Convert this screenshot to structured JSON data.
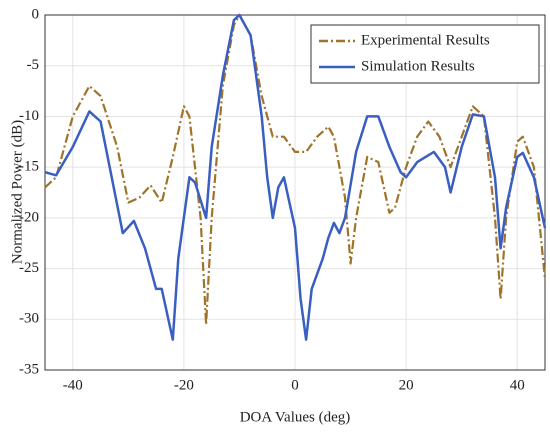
{
  "chart_data": {
    "type": "line",
    "xlabel": "DOA Values (deg)",
    "ylabel": "Normalized Power (dB)",
    "xlim": [
      -45,
      45
    ],
    "ylim": [
      -35,
      0
    ],
    "xticks": [
      -40,
      -20,
      0,
      20,
      40
    ],
    "yticks": [
      0,
      -5,
      -10,
      -15,
      -20,
      -25,
      -30,
      -35
    ],
    "grid": true,
    "legend": "upper right",
    "series": [
      {
        "name": "Experimental Results",
        "color": "#a0732a",
        "linestyle": "dashdot",
        "x": [
          -45,
          -43,
          -40,
          -37,
          -35,
          -32,
          -30,
          -28,
          -26,
          -24,
          -22,
          -20,
          -19,
          -17,
          -16,
          -15,
          -13,
          -11,
          -10,
          -8,
          -6,
          -4,
          -2,
          0,
          2,
          4,
          6,
          7,
          9,
          10,
          11,
          13,
          15,
          17,
          18,
          20,
          22,
          24,
          26,
          28,
          30,
          32,
          34,
          36,
          37,
          38,
          40,
          41,
          43,
          45
        ],
        "values": [
          -17,
          -16,
          -10,
          -7,
          -8,
          -13,
          -18.5,
          -18,
          -16.8,
          -18.5,
          -14,
          -9,
          -10,
          -20,
          -30.5,
          -20,
          -7,
          -1,
          0,
          -2,
          -8,
          -12,
          -12,
          -13.5,
          -13.5,
          -12,
          -11,
          -12,
          -18,
          -24.5,
          -20,
          -14,
          -14.5,
          -19.5,
          -19,
          -15,
          -12,
          -10.5,
          -12,
          -15,
          -12,
          -9,
          -10,
          -20,
          -28,
          -20,
          -12.5,
          -12,
          -15,
          -26
        ]
      },
      {
        "name": "Simulation Results",
        "color": "#3a5fc0",
        "linestyle": "solid",
        "x": [
          -45,
          -43,
          -40,
          -37,
          -35,
          -33,
          -31,
          -29,
          -27,
          -25,
          -24,
          -22,
          -21,
          -19,
          -18,
          -16,
          -15,
          -13,
          -11,
          -10,
          -8,
          -6,
          -5,
          -4,
          -3,
          -2,
          0,
          1,
          2,
          3,
          5,
          6,
          7,
          8,
          9,
          11,
          13,
          15,
          17,
          19,
          20,
          22,
          25,
          27,
          28,
          30,
          32,
          34,
          36,
          37,
          38,
          40,
          41,
          43,
          45
        ],
        "values": [
          -15.5,
          -15.8,
          -13,
          -9.5,
          -10.5,
          -16,
          -21.5,
          -20.3,
          -23,
          -27,
          -27,
          -32,
          -24,
          -16,
          -16.5,
          -20,
          -13,
          -6,
          -0.5,
          0,
          -2,
          -10,
          -16,
          -20,
          -17,
          -16,
          -21,
          -28,
          -32,
          -27,
          -24,
          -22,
          -20.5,
          -21.5,
          -20,
          -13.5,
          -10,
          -10,
          -13,
          -15.5,
          -16,
          -14.5,
          -13.5,
          -15,
          -17.5,
          -13,
          -9.8,
          -10,
          -16,
          -23,
          -19,
          -14,
          -13.6,
          -16,
          -21
        ]
      }
    ]
  }
}
